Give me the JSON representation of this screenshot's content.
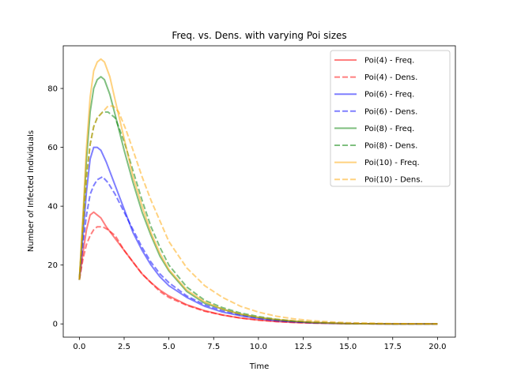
{
  "chart_data": {
    "type": "line",
    "title": "Freq. vs. Dens. with varying Poi sizes",
    "xlabel": "Time",
    "ylabel": "Number of Infected Individuals",
    "xlim": [
      -0.9,
      21.0
    ],
    "ylim": [
      -4.5,
      94.5
    ],
    "xticks": [
      "0.0",
      "2.5",
      "5.0",
      "7.5",
      "10.0",
      "12.5",
      "15.0",
      "17.5",
      "20.0"
    ],
    "yticks": [
      "0",
      "20",
      "40",
      "60",
      "80"
    ],
    "grid": false,
    "legend_position": "top-right",
    "series": [
      {
        "name": "Poi(4) - Freq.",
        "color": "#ff0000",
        "dashed": false,
        "x": [
          0,
          0.2,
          0.4,
          0.6,
          0.8,
          1.0,
          1.2,
          1.5,
          2.0,
          2.5,
          3.0,
          3.5,
          4.0,
          4.5,
          5.0,
          6.0,
          7.0,
          8.0,
          9.0,
          10.0,
          11.0,
          12.0,
          13.0,
          14.0,
          15.0,
          17.5,
          20.0
        ],
        "y": [
          15,
          24,
          32,
          37,
          38,
          37,
          36,
          33,
          29,
          25,
          21,
          17,
          14,
          11.5,
          9.5,
          6.5,
          4.5,
          3,
          2,
          1.3,
          0.8,
          0.5,
          0.3,
          0.2,
          0.1,
          0,
          0
        ]
      },
      {
        "name": "Poi(4) - Dens.",
        "color": "#ff0000",
        "dashed": true,
        "x": [
          0,
          0.2,
          0.4,
          0.6,
          0.8,
          1.0,
          1.3,
          1.6,
          2.0,
          2.5,
          3.0,
          3.5,
          4.0,
          4.5,
          5.0,
          6.0,
          7.0,
          8.0,
          9.0,
          10.0,
          11.0,
          12.0,
          13.0,
          14.0,
          15.0,
          17.5,
          20.0
        ],
        "y": [
          15,
          22,
          27,
          30,
          32,
          33,
          33,
          32,
          30,
          25,
          21,
          17,
          14,
          11,
          9,
          6.3,
          4.3,
          3,
          2,
          1.3,
          0.8,
          0.5,
          0.3,
          0.2,
          0.1,
          0,
          0
        ]
      },
      {
        "name": "Poi(6) - Freq.",
        "color": "#0000ff",
        "dashed": false,
        "x": [
          0,
          0.2,
          0.4,
          0.6,
          0.8,
          1.0,
          1.2,
          1.5,
          2.0,
          2.5,
          3.0,
          3.5,
          4.0,
          4.5,
          5.0,
          6.0,
          7.0,
          8.0,
          9.0,
          10.0,
          11.0,
          12.0,
          13.0,
          14.0,
          15.0,
          17.5,
          20.0
        ],
        "y": [
          15,
          30,
          45,
          56,
          60,
          60,
          59,
          55,
          47,
          39,
          31,
          25,
          20,
          16,
          13,
          9,
          6,
          4,
          2.8,
          1.8,
          1.1,
          0.7,
          0.4,
          0.2,
          0.1,
          0,
          0
        ]
      },
      {
        "name": "Poi(6)  - Dens.",
        "color": "#0000ff",
        "dashed": true,
        "x": [
          0,
          0.2,
          0.4,
          0.6,
          0.8,
          1.0,
          1.3,
          1.6,
          2.0,
          2.5,
          3.0,
          3.5,
          4.0,
          4.5,
          5.0,
          6.0,
          7.0,
          8.0,
          9.0,
          10.0,
          11.0,
          12.0,
          13.0,
          14.0,
          15.0,
          17.5,
          20.0
        ],
        "y": [
          15,
          27,
          37,
          44,
          47,
          49,
          50,
          48,
          44,
          38,
          32,
          26,
          21,
          17,
          14,
          9.5,
          6.5,
          4.5,
          3,
          2,
          1.3,
          0.8,
          0.5,
          0.3,
          0.1,
          0,
          0
        ]
      },
      {
        "name": "Poi(8) - Freq.",
        "color": "#008000",
        "dashed": false,
        "x": [
          0,
          0.2,
          0.4,
          0.6,
          0.8,
          1.0,
          1.2,
          1.4,
          1.7,
          2.0,
          2.5,
          3.0,
          3.5,
          4.0,
          4.5,
          5.0,
          6.0,
          7.0,
          8.0,
          9.0,
          10.0,
          11.0,
          12.0,
          13.0,
          14.0,
          15.0,
          17.5,
          20.0
        ],
        "y": [
          15,
          35,
          56,
          72,
          80,
          83,
          84,
          83,
          78,
          71,
          59,
          48,
          38,
          30,
          23,
          18,
          11,
          7,
          5,
          3.3,
          2.2,
          1.4,
          0.9,
          0.5,
          0.3,
          0.1,
          0,
          0
        ]
      },
      {
        "name": "Poi(8) - Dens.",
        "color": "#008000",
        "dashed": true,
        "x": [
          0,
          0.2,
          0.4,
          0.6,
          0.8,
          1.0,
          1.3,
          1.6,
          2.0,
          2.5,
          3.0,
          3.5,
          4.0,
          4.5,
          5.0,
          6.0,
          7.0,
          8.0,
          9.0,
          10.0,
          11.0,
          12.0,
          13.0,
          14.0,
          15.0,
          17.5,
          20.0
        ],
        "y": [
          15,
          33,
          50,
          61,
          67,
          70,
          72,
          72,
          70,
          62,
          52,
          42,
          33,
          26,
          20,
          12.5,
          8,
          5.5,
          3.7,
          2.5,
          1.6,
          1,
          0.6,
          0.4,
          0.2,
          0,
          0
        ]
      },
      {
        "name": "Poi(10) - Freq.",
        "color": "#ffa500",
        "dashed": false,
        "x": [
          0,
          0.2,
          0.4,
          0.6,
          0.8,
          1.0,
          1.2,
          1.4,
          1.7,
          2.0,
          2.5,
          3.0,
          3.5,
          4.0,
          4.5,
          5.0,
          6.0,
          7.0,
          8.0,
          9.0,
          10.0,
          11.0,
          12.0,
          13.0,
          14.0,
          15.0,
          17.5,
          20.0
        ],
        "y": [
          15,
          37,
          60,
          77,
          86,
          89,
          90,
          89,
          84,
          76,
          63,
          50,
          40,
          31,
          24,
          18.5,
          11.5,
          7.5,
          5,
          3.3,
          2.2,
          1.5,
          1,
          0.6,
          0.3,
          0.1,
          0,
          0
        ]
      },
      {
        "name": "Poi(10) - Dens.",
        "color": "#ffa500",
        "dashed": true,
        "x": [
          0,
          0.2,
          0.4,
          0.6,
          0.8,
          1.0,
          1.3,
          1.6,
          1.9,
          2.2,
          2.6,
          3.0,
          3.5,
          4.0,
          4.5,
          5.0,
          6.0,
          7.0,
          8.0,
          9.0,
          10.0,
          11.0,
          12.0,
          13.0,
          14.0,
          15.0,
          17.5,
          20.0
        ],
        "y": [
          15,
          33,
          50,
          61,
          67,
          70,
          72,
          74,
          74,
          72,
          66,
          59,
          50,
          42,
          35,
          28,
          19,
          13,
          9,
          6,
          4,
          2.6,
          1.7,
          1.1,
          0.7,
          0.4,
          0.1,
          0
        ]
      }
    ]
  }
}
